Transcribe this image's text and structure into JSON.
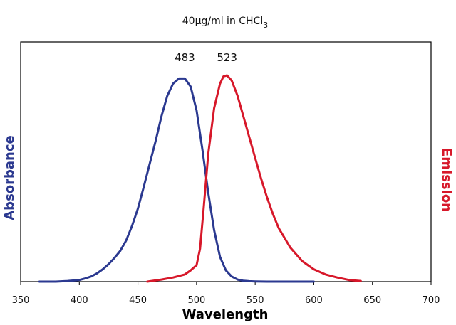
{
  "chart_data": {
    "type": "line",
    "title": "40µg/ml in CHCl",
    "title_subscript": "3",
    "xlabel": "Wavelength",
    "ylabel_left": "Absorbance",
    "ylabel_right": "Emission",
    "xlim": [
      350,
      700
    ],
    "ylim": [
      0,
      1
    ],
    "xticks": [
      "350",
      "400",
      "450",
      "500",
      "550",
      "600",
      "650",
      "700"
    ],
    "grid": false,
    "colors": {
      "absorbance": "#2b3990",
      "emission": "#d7182a",
      "axis": "#000000"
    },
    "annotations": [
      {
        "text": "483",
        "x": 490
      },
      {
        "text": "523",
        "x": 526
      }
    ],
    "series": [
      {
        "x": [
          366,
          380,
          390,
          400,
          405,
          410,
          415,
          420,
          425,
          430,
          435,
          440,
          445,
          450,
          455,
          460,
          465,
          470,
          475,
          480,
          485,
          490,
          495,
          500,
          505,
          510,
          515,
          520,
          525,
          530,
          535,
          540,
          545,
          550,
          560,
          580,
          600
        ],
        "y": [
          0.0,
          0.0,
          0.003,
          0.008,
          0.015,
          0.025,
          0.04,
          0.06,
          0.085,
          0.115,
          0.15,
          0.2,
          0.27,
          0.355,
          0.46,
          0.57,
          0.68,
          0.8,
          0.9,
          0.96,
          0.985,
          0.985,
          0.945,
          0.83,
          0.64,
          0.43,
          0.25,
          0.12,
          0.055,
          0.025,
          0.01,
          0.004,
          0.002,
          0.001,
          0.0,
          0.0,
          0.0
        ]
      },
      {
        "x": [
          458,
          470,
          480,
          490,
          495,
          500,
          503,
          506,
          510,
          515,
          520,
          523,
          526,
          530,
          535,
          540,
          545,
          550,
          555,
          560,
          565,
          570,
          580,
          590,
          600,
          610,
          620,
          630,
          640
        ],
        "y": [
          0.0,
          0.01,
          0.02,
          0.035,
          0.055,
          0.08,
          0.16,
          0.35,
          0.62,
          0.84,
          0.96,
          0.995,
          1.0,
          0.975,
          0.9,
          0.8,
          0.7,
          0.6,
          0.5,
          0.41,
          0.33,
          0.26,
          0.165,
          0.1,
          0.06,
          0.035,
          0.02,
          0.008,
          0.003
        ]
      }
    ]
  }
}
